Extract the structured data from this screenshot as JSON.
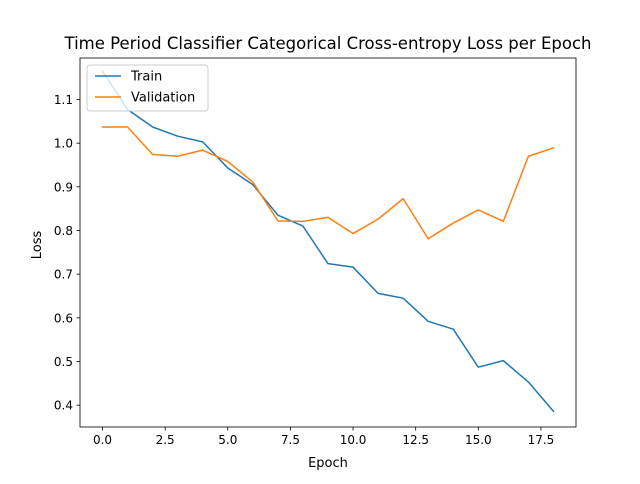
{
  "chart_data": {
    "type": "line",
    "title": "Time Period Classifier Categorical Cross-entropy Loss per Epoch",
    "xlabel": "Epoch",
    "ylabel": "Loss",
    "x": [
      0,
      1,
      2,
      3,
      4,
      5,
      6,
      7,
      8,
      9,
      10,
      11,
      12,
      13,
      14,
      15,
      16,
      17,
      18
    ],
    "xlim": [
      -0.9,
      18.9
    ],
    "ylim": [
      0.35,
      1.195
    ],
    "x_ticks": [
      0,
      2.5,
      5,
      7.5,
      10,
      12.5,
      15,
      17.5
    ],
    "x_tick_labels": [
      "0.0",
      "2.5",
      "5.0",
      "7.5",
      "10.0",
      "12.5",
      "15.0",
      "17.5"
    ],
    "y_ticks": [
      0.4,
      0.5,
      0.6,
      0.7,
      0.8,
      0.9,
      1.0,
      1.1
    ],
    "y_tick_labels": [
      "0.4",
      "0.5",
      "0.6",
      "0.7",
      "0.8",
      "0.9",
      "1.0",
      "1.1"
    ],
    "grid": false,
    "legend_position": "upper-left",
    "series": [
      {
        "name": "Train",
        "color": "#1f77b4",
        "values": [
          1.165,
          1.077,
          1.037,
          1.016,
          1.003,
          0.943,
          0.905,
          0.835,
          0.81,
          0.724,
          0.716,
          0.656,
          0.645,
          0.592,
          0.574,
          0.487,
          0.502,
          0.453,
          0.386
        ]
      },
      {
        "name": "Validation",
        "color": "#ff7f0e",
        "values": [
          1.037,
          1.037,
          0.974,
          0.97,
          0.984,
          0.958,
          0.911,
          0.822,
          0.821,
          0.83,
          0.793,
          0.826,
          0.873,
          0.781,
          0.817,
          0.847,
          0.821,
          0.97,
          0.989
        ]
      }
    ]
  }
}
